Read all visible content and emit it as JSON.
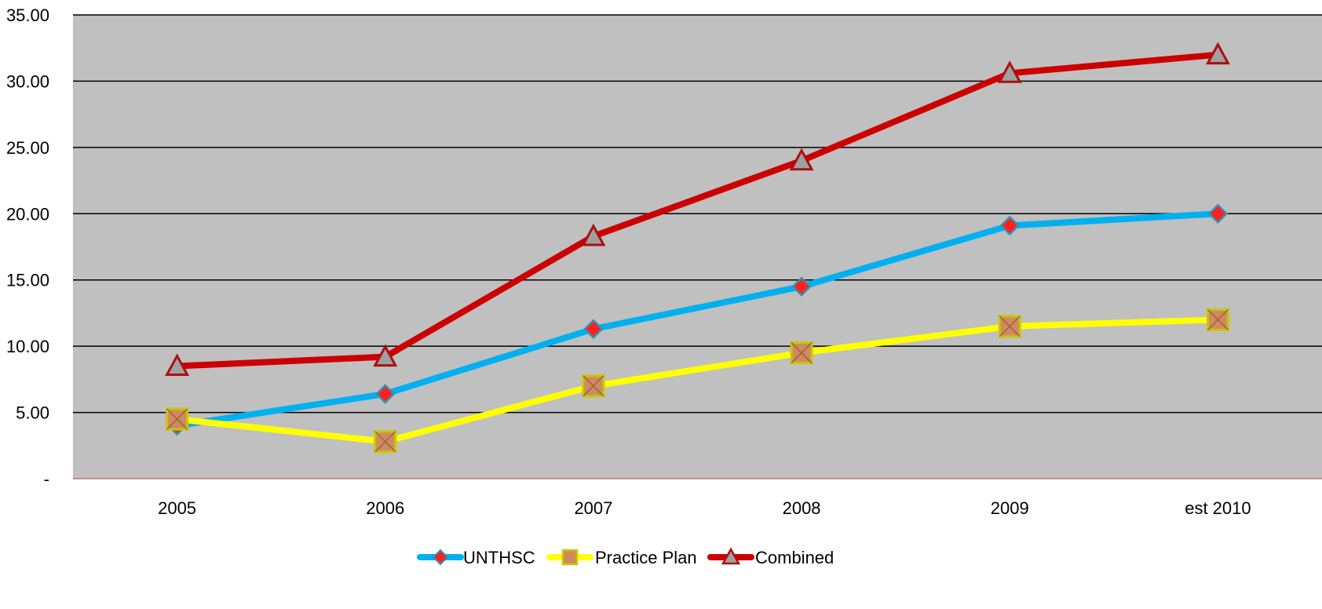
{
  "chart_data": {
    "type": "line",
    "categories": [
      "2005",
      "2006",
      "2007",
      "2008",
      "2009",
      "est 2010"
    ],
    "ylim": [
      0,
      35
    ],
    "yticks": [
      0,
      5,
      10,
      15,
      20,
      25,
      30,
      35
    ],
    "ytick_labels": [
      "-",
      "5.00",
      "10.00",
      "15.00",
      "20.00",
      "25.00",
      "30.00",
      "35.00"
    ],
    "grid": true,
    "legend_position": "bottom",
    "plot_background": "#c0c0c0",
    "series": [
      {
        "name": "UNTHSC",
        "color": "#00b0f0",
        "marker": "diamond",
        "marker_color": "#ff2020",
        "values": [
          4.0,
          6.4,
          11.3,
          14.5,
          19.1,
          20.0
        ]
      },
      {
        "name": "Practice Plan",
        "color": "#ffff00",
        "marker": "square",
        "marker_color": "#d08a60",
        "values": [
          4.5,
          2.8,
          7.0,
          9.5,
          11.5,
          12.0
        ]
      },
      {
        "name": "Combined",
        "color": "#cc0000",
        "marker": "triangle",
        "marker_color": "#a0a0a0",
        "values": [
          8.5,
          9.2,
          18.3,
          24.0,
          30.6,
          32.0
        ]
      }
    ]
  }
}
